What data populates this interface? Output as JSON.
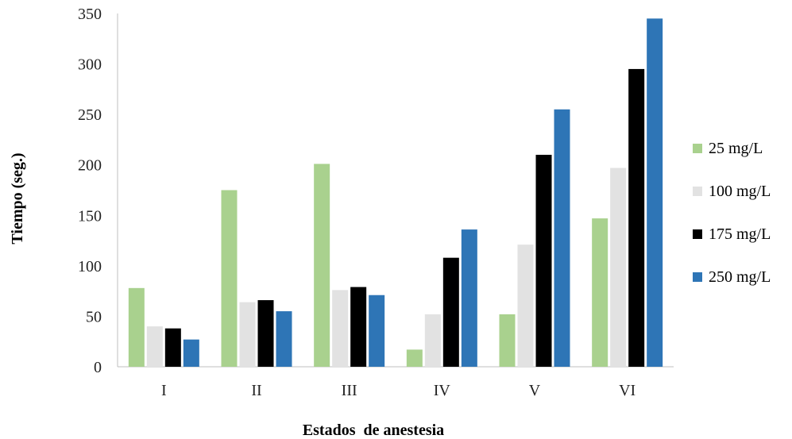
{
  "chart_data": {
    "type": "bar",
    "categories": [
      "I",
      "II",
      "III",
      "IV",
      "V",
      "VI"
    ],
    "series": [
      {
        "name": "25 mg/L",
        "color": "#a9d18e",
        "values": [
          78,
          175,
          201,
          17,
          52,
          147
        ]
      },
      {
        "name": "100 mg/L",
        "color": "#e2e2e2",
        "values": [
          40,
          64,
          76,
          52,
          121,
          197
        ]
      },
      {
        "name": "175 mg/L",
        "color": "#000000",
        "values": [
          38,
          66,
          79,
          108,
          210,
          295
        ]
      },
      {
        "name": "250 mg/L",
        "color": "#2e75b6",
        "values": [
          27,
          55,
          71,
          136,
          255,
          345
        ]
      }
    ],
    "ylim": [
      0,
      350
    ],
    "yticks": [
      0,
      50,
      100,
      150,
      200,
      250,
      300,
      350
    ],
    "xlabel": "Estados  de anestesia",
    "ylabel": "Tiempo (seg.)",
    "grid": false,
    "legend_position": "right"
  }
}
